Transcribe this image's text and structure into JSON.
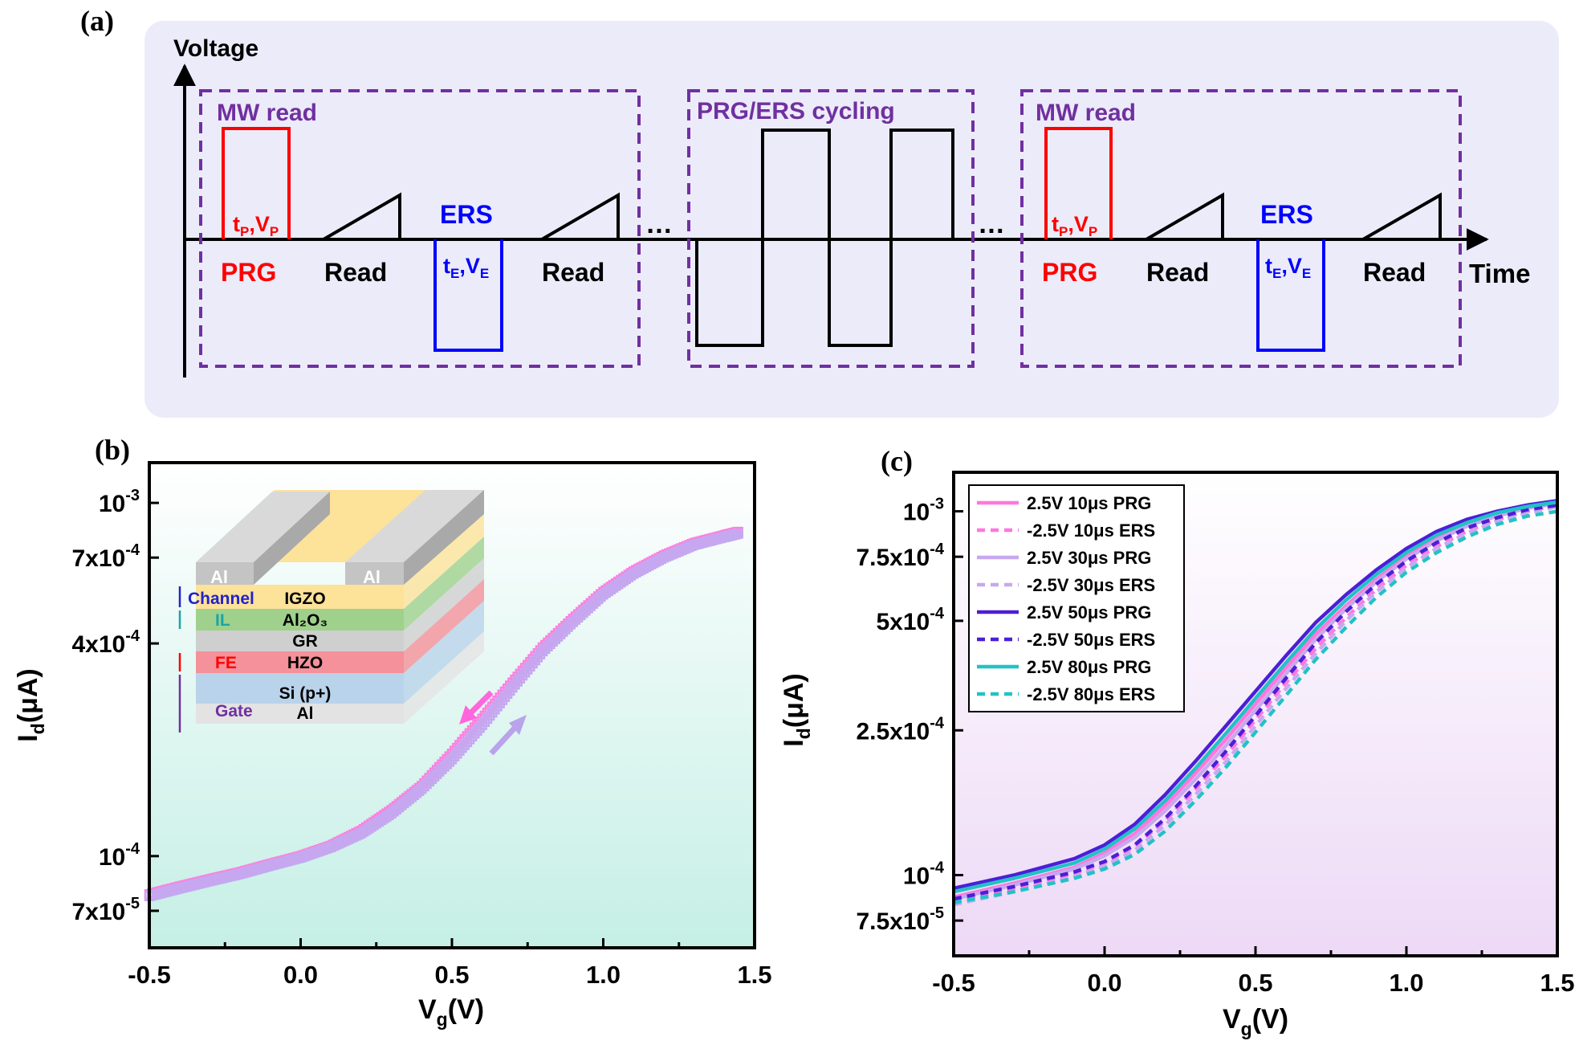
{
  "panels": {
    "a": {
      "label": "(a)",
      "y_axis_label": "Voltage",
      "x_axis_label": "Time",
      "ellipsis": "…",
      "boxes": {
        "left": "MW read",
        "middle": "PRG/ERS cycling",
        "right": "MW read"
      },
      "pulse_labels": {
        "prg": "PRG",
        "ers": "ERS",
        "read": "Read",
        "tp": "t",
        "tp_sub": "P",
        "vp": "V",
        "vp_sub": "P",
        "te": "t",
        "te_sub": "E",
        "ve": "V",
        "ve_sub": "E",
        "comma": ","
      },
      "colors": {
        "background": "#ecebf9",
        "box": "#7030a0",
        "prg": "#ff0000",
        "ers": "#0000ff",
        "read": "#000000"
      }
    },
    "b": {
      "label": "(b)"
    },
    "c": {
      "label": "(c)"
    }
  },
  "inset": {
    "layers": [
      {
        "side": "Channel",
        "name": "IGZO",
        "side_color": "#2222cc",
        "color": "#fde29a"
      },
      {
        "side": "IL",
        "name": "Al₂O₃",
        "side_color": "#1aa5a5",
        "color": "#9fd18c"
      },
      {
        "side": "",
        "name": "GR",
        "side_color": "#000000",
        "color": "#cfcfcf"
      },
      {
        "side": "FE",
        "name": "HZO",
        "side_color": "#ff0000",
        "color": "#f4919a"
      },
      {
        "side": "Gate",
        "name": "Si (p+)",
        "side_color": "#7030a0",
        "color": "#b9d3ea"
      },
      {
        "side": "",
        "name": "Al",
        "side_color": "#000000",
        "color": "#e3e3e3"
      }
    ],
    "electrode_left": "Al",
    "electrode_right": "Al"
  },
  "chart_data": [
    {
      "panel": "b",
      "type": "scatter",
      "xlabel": "V",
      "xlabel_sub": "g",
      "xlabel_unit": "(V)",
      "ylabel": "I",
      "ylabel_sub": "d",
      "ylabel_unit": "(μA)",
      "xlim": [
        -0.5,
        1.5
      ],
      "ylim": [
        5.5e-05,
        0.0013
      ],
      "yscale": "log",
      "x_ticks": [
        -0.5,
        0.0,
        0.5,
        1.0,
        1.5
      ],
      "x_tick_labels": [
        "-0.5",
        "0.0",
        "0.5",
        "1.0",
        "1.5"
      ],
      "y_ticks": [
        {
          "value": 0.001,
          "mant": "10",
          "exp": "-3"
        },
        {
          "value": 0.0007,
          "mant": "7x10",
          "exp": "-4"
        },
        {
          "value": 0.0004,
          "mant": "4x10",
          "exp": "-4"
        },
        {
          "value": 0.0001,
          "mant": "10",
          "exp": "-4"
        },
        {
          "value": 7e-05,
          "mant": "7x10",
          "exp": "-5"
        }
      ],
      "plot_background": [
        "#ffffff",
        "#c5efe5"
      ],
      "series": [
        {
          "color": "#ff80e0",
          "x": [
            -0.5,
            -0.4,
            -0.3,
            -0.2,
            -0.1,
            0.0,
            0.1,
            0.2,
            0.3,
            0.4,
            0.5,
            0.6,
            0.7,
            0.8,
            0.9,
            1.0,
            1.1,
            1.2,
            1.3,
            1.4,
            1.45
          ],
          "y": [
            7.8e-05,
            8.2e-05,
            8.6e-05,
            9e-05,
            9.5e-05,
            0.0001,
            0.000107,
            0.000118,
            0.000135,
            0.000158,
            0.000195,
            0.000245,
            0.00031,
            0.00039,
            0.00047,
            0.00056,
            0.00064,
            0.00071,
            0.00077,
            0.00081,
            0.00083
          ]
        },
        {
          "color": "#c5a8f0",
          "x": [
            -0.5,
            -0.4,
            -0.3,
            -0.2,
            -0.1,
            0.0,
            0.1,
            0.2,
            0.3,
            0.4,
            0.5,
            0.6,
            0.7,
            0.8,
            0.9,
            1.0,
            1.1,
            1.2,
            1.3,
            1.4,
            1.45
          ],
          "y": [
            7.7e-05,
            8.1e-05,
            8.5e-05,
            8.9e-05,
            9.4e-05,
            9.9e-05,
            0.000106,
            0.000116,
            0.000132,
            0.000155,
            0.000188,
            0.000235,
            0.0003,
            0.00038,
            0.00046,
            0.00055,
            0.00063,
            0.0007,
            0.00076,
            0.0008,
            0.00082
          ]
        }
      ]
    },
    {
      "panel": "c",
      "type": "line",
      "xlabel": "V",
      "xlabel_sub": "g",
      "xlabel_unit": "(V)",
      "ylabel": "I",
      "ylabel_sub": "d",
      "ylabel_unit": "(μA)",
      "xlim": [
        -0.5,
        1.5
      ],
      "ylim": [
        6e-05,
        0.00128
      ],
      "yscale": "log",
      "x_ticks": [
        -0.5,
        0.0,
        0.5,
        1.0,
        1.5
      ],
      "x_tick_labels": [
        "-0.5",
        "0.0",
        "0.5",
        "1.0",
        "1.5"
      ],
      "y_ticks": [
        {
          "value": 0.001,
          "mant": "10",
          "exp": "-3"
        },
        {
          "value": 0.00075,
          "mant": "7.5x10",
          "exp": "-4"
        },
        {
          "value": 0.0005,
          "mant": "5x10",
          "exp": "-4"
        },
        {
          "value": 0.00025,
          "mant": "2.5x10",
          "exp": "-4"
        },
        {
          "value": 0.0001,
          "mant": "10",
          "exp": "-4"
        },
        {
          "value": 7.5e-05,
          "mant": "7.5x10",
          "exp": "-5"
        }
      ],
      "plot_background": [
        "#ffffff",
        "#edd9f6"
      ],
      "legend": "top-left",
      "x": [
        -0.5,
        -0.3,
        -0.1,
        0.0,
        0.1,
        0.2,
        0.3,
        0.4,
        0.5,
        0.6,
        0.7,
        0.8,
        0.9,
        1.0,
        1.1,
        1.2,
        1.3,
        1.4,
        1.5
      ],
      "series": [
        {
          "name": "2.5V 10μs PRG",
          "color": "#ff77dd",
          "dash": false,
          "values": [
            8.7e-05,
            9.5e-05,
            0.000105,
            0.000115,
            0.00013,
            0.000155,
            0.00019,
            0.000235,
            0.000295,
            0.00037,
            0.00046,
            0.00055,
            0.00065,
            0.00075,
            0.00084,
            0.00092,
            0.00098,
            0.00103,
            0.00106
          ]
        },
        {
          "name": "-2.5V 10μs ERS",
          "color": "#ff77dd",
          "dash": true,
          "values": [
            8.5e-05,
            9.2e-05,
            0.000101,
            0.000108,
            0.00012,
            0.000141,
            0.000172,
            0.000212,
            0.000267,
            0.000337,
            0.00042,
            0.00051,
            0.00061,
            0.00071,
            0.0008,
            0.00088,
            0.00095,
            0.001,
            0.00104
          ]
        },
        {
          "name": "2.5V 30μs PRG",
          "color": "#c8a8f0",
          "dash": false,
          "values": [
            8.6e-05,
            9.4e-05,
            0.000104,
            0.000113,
            0.000127,
            0.00015,
            0.000183,
            0.000226,
            0.000284,
            0.000357,
            0.000445,
            0.00054,
            0.00064,
            0.00074,
            0.00083,
            0.00091,
            0.00097,
            0.00102,
            0.00105
          ]
        },
        {
          "name": "-2.5V 30μs ERS",
          "color": "#c8a8f0",
          "dash": true,
          "values": [
            8.3e-05,
            9e-05,
            9.9e-05,
            0.000106,
            0.000117,
            0.000137,
            0.000166,
            0.000204,
            0.000257,
            0.000325,
            0.000407,
            0.0005,
            0.0006,
            0.0007,
            0.00079,
            0.00087,
            0.00094,
            0.00099,
            0.00103
          ]
        },
        {
          "name": "2.5V 50μs PRG",
          "color": "#4b1fd6",
          "dash": false,
          "values": [
            9.2e-05,
            0.0001,
            0.000111,
            0.000121,
            0.000138,
            0.000166,
            0.000205,
            0.000256,
            0.00032,
            0.0004,
            0.000495,
            0.00059,
            0.00069,
            0.00079,
            0.00088,
            0.00095,
            0.001,
            0.00104,
            0.00107
          ]
        },
        {
          "name": "-2.5V 50μs ERS",
          "color": "#4b1fd6",
          "dash": true,
          "values": [
            8.6e-05,
            9.3e-05,
            0.000102,
            0.000109,
            0.000121,
            0.000143,
            0.000175,
            0.000218,
            0.000274,
            0.000347,
            0.000435,
            0.00053,
            0.00063,
            0.00073,
            0.00082,
            0.0009,
            0.00096,
            0.00101,
            0.00104
          ]
        },
        {
          "name": "2.5V 80μs PRG",
          "color": "#22c2c6",
          "dash": false,
          "values": [
            9e-05,
            9.8e-05,
            0.000108,
            0.000118,
            0.000134,
            0.00016,
            0.000196,
            0.000244,
            0.000306,
            0.000383,
            0.000475,
            0.00057,
            0.00067,
            0.00077,
            0.00086,
            0.00093,
            0.00099,
            0.00103,
            0.00106
          ]
        },
        {
          "name": "-2.5V 80μs ERS",
          "color": "#22c2c6",
          "dash": true,
          "values": [
            8.4e-05,
            9e-05,
            9.8e-05,
            0.000104,
            0.000114,
            0.000132,
            0.00016,
            0.000197,
            0.000247,
            0.000311,
            0.000392,
            0.00048,
            0.00058,
            0.00068,
            0.00077,
            0.00085,
            0.00092,
            0.00097,
            0.001
          ]
        }
      ]
    }
  ]
}
